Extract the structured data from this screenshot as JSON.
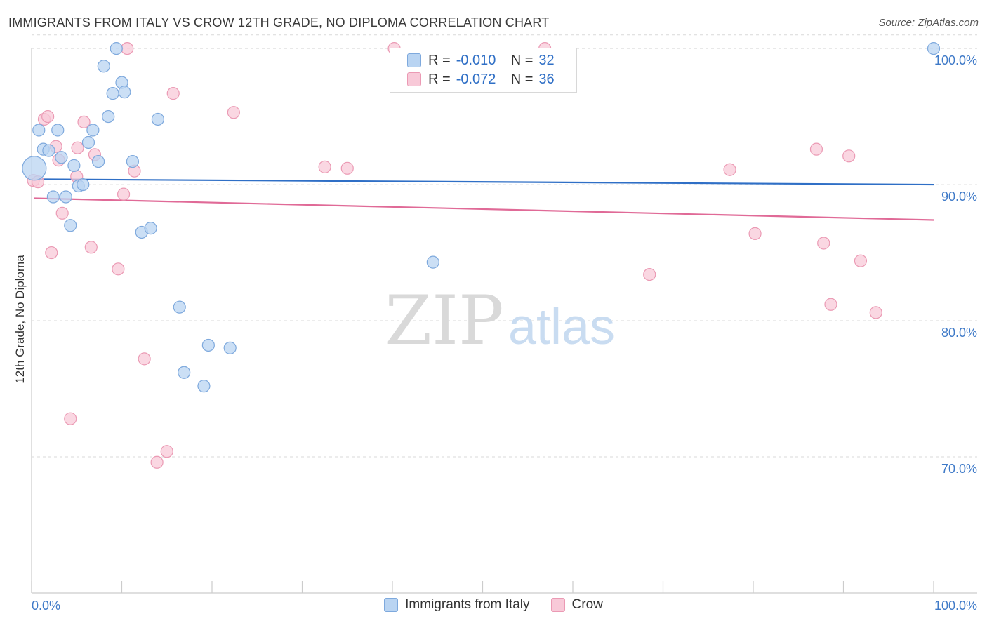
{
  "header": {
    "title": "IMMIGRANTS FROM ITALY VS CROW 12TH GRADE, NO DIPLOMA CORRELATION CHART",
    "source": "Source: ZipAtlas.com"
  },
  "watermark": {
    "zip": "ZIP",
    "atlas": "atlas"
  },
  "legend_stats": {
    "row1": {
      "r_label": "R =",
      "r_value": "-0.010",
      "n_label": "N =",
      "n_value": "32"
    },
    "row2": {
      "r_label": "R =",
      "r_value": "-0.072",
      "n_label": "N =",
      "n_value": "36"
    }
  },
  "bottom_legend": {
    "italy": "Immigrants from Italy",
    "crow": "Crow"
  },
  "colors": {
    "italy_fill": "#b9d4f2",
    "italy_stroke": "#7ea9dd",
    "italy_line": "#2f6fc6",
    "crow_fill": "#f8c9d8",
    "crow_stroke": "#eb9ab4",
    "crow_line": "#e06a97",
    "tick_label": "#3f7ac8",
    "grid": "#d9d9d9"
  },
  "chart_data": {
    "type": "scatter",
    "title": "IMMIGRANTS FROM ITALY VS CROW 12TH GRADE, NO DIPLOMA CORRELATION CHART",
    "xlabel": "",
    "ylabel": "12th Grade, No Diploma",
    "xlim": [
      0,
      100
    ],
    "ylim": [
      60,
      101.5
    ],
    "x_tick_labels": [
      "0.0%",
      "100.0%"
    ],
    "y_ticks": [
      70,
      80,
      90,
      100
    ],
    "y_tick_labels": [
      "70.0%",
      "80.0%",
      "90.0%",
      "100.0%"
    ],
    "grid": "horizontal dashed",
    "legend_position": "top-center",
    "series": [
      {
        "name": "Immigrants from Italy",
        "r": -0.01,
        "n": 32,
        "trend": {
          "x": [
            0,
            100
          ],
          "y": [
            90.4,
            90.0
          ]
        },
        "points": [
          {
            "x": 0.3,
            "y": 91.2,
            "big": true
          },
          {
            "x": 0.8,
            "y": 94.0
          },
          {
            "x": 1.3,
            "y": 92.6
          },
          {
            "x": 1.9,
            "y": 92.5
          },
          {
            "x": 2.4,
            "y": 89.1
          },
          {
            "x": 2.9,
            "y": 94.0
          },
          {
            "x": 3.3,
            "y": 92.0
          },
          {
            "x": 3.8,
            "y": 89.1
          },
          {
            "x": 4.3,
            "y": 87.0
          },
          {
            "x": 4.7,
            "y": 91.4
          },
          {
            "x": 5.2,
            "y": 89.9
          },
          {
            "x": 5.7,
            "y": 90.0
          },
          {
            "x": 6.3,
            "y": 93.1
          },
          {
            "x": 6.8,
            "y": 94.0
          },
          {
            "x": 7.4,
            "y": 91.7
          },
          {
            "x": 8.0,
            "y": 98.7
          },
          {
            "x": 8.5,
            "y": 95.0
          },
          {
            "x": 9.0,
            "y": 96.7
          },
          {
            "x": 9.4,
            "y": 100.0
          },
          {
            "x": 10.0,
            "y": 97.5
          },
          {
            "x": 10.3,
            "y": 96.8
          },
          {
            "x": 11.2,
            "y": 91.7
          },
          {
            "x": 12.2,
            "y": 86.5
          },
          {
            "x": 13.2,
            "y": 86.8
          },
          {
            "x": 14.0,
            "y": 94.8
          },
          {
            "x": 16.4,
            "y": 81.0
          },
          {
            "x": 16.9,
            "y": 76.2
          },
          {
            "x": 19.1,
            "y": 75.2
          },
          {
            "x": 19.6,
            "y": 78.2
          },
          {
            "x": 22.0,
            "y": 78.0
          },
          {
            "x": 44.5,
            "y": 84.3
          },
          {
            "x": 100.0,
            "y": 100.0
          }
        ]
      },
      {
        "name": "Crow",
        "r": -0.072,
        "n": 36,
        "trend": {
          "x": [
            0,
            100
          ],
          "y": [
            89.0,
            87.4
          ]
        },
        "points": [
          {
            "x": 0.2,
            "y": 90.3
          },
          {
            "x": 0.7,
            "y": 90.2
          },
          {
            "x": 1.4,
            "y": 94.8
          },
          {
            "x": 1.8,
            "y": 95.0
          },
          {
            "x": 2.2,
            "y": 85.0
          },
          {
            "x": 2.7,
            "y": 92.8
          },
          {
            "x": 3.0,
            "y": 91.8
          },
          {
            "x": 3.4,
            "y": 87.9
          },
          {
            "x": 4.3,
            "y": 72.8
          },
          {
            "x": 5.0,
            "y": 90.6
          },
          {
            "x": 5.1,
            "y": 92.7
          },
          {
            "x": 5.8,
            "y": 94.6
          },
          {
            "x": 6.6,
            "y": 85.4
          },
          {
            "x": 7.0,
            "y": 92.2
          },
          {
            "x": 9.6,
            "y": 83.8
          },
          {
            "x": 10.2,
            "y": 89.3
          },
          {
            "x": 10.6,
            "y": 100.0
          },
          {
            "x": 11.4,
            "y": 91.0
          },
          {
            "x": 12.5,
            "y": 77.2
          },
          {
            "x": 13.9,
            "y": 69.6
          },
          {
            "x": 15.0,
            "y": 70.4
          },
          {
            "x": 15.7,
            "y": 96.7
          },
          {
            "x": 22.4,
            "y": 95.3
          },
          {
            "x": 32.5,
            "y": 91.3
          },
          {
            "x": 35.0,
            "y": 91.2
          },
          {
            "x": 40.2,
            "y": 100.0
          },
          {
            "x": 56.9,
            "y": 100.0
          },
          {
            "x": 68.5,
            "y": 83.4
          },
          {
            "x": 77.4,
            "y": 91.1
          },
          {
            "x": 80.2,
            "y": 86.4
          },
          {
            "x": 87.0,
            "y": 92.6
          },
          {
            "x": 87.8,
            "y": 85.7
          },
          {
            "x": 88.6,
            "y": 81.2
          },
          {
            "x": 90.6,
            "y": 92.1
          },
          {
            "x": 91.9,
            "y": 84.4
          },
          {
            "x": 93.6,
            "y": 80.6
          }
        ]
      }
    ]
  }
}
